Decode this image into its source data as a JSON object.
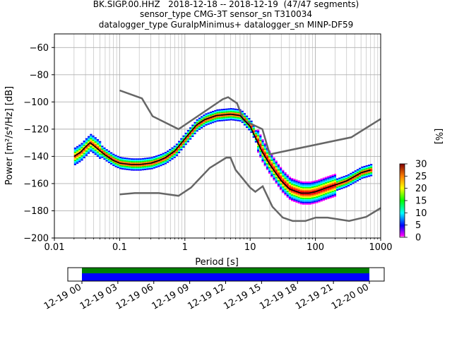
{
  "header": {
    "line1": "BK.SIGP.00.HHZ   2018-12-18 -- 2018-12-19  (47/47 segments)",
    "line2": "sensor_type CMG-3T sensor_sn T310034",
    "line3": "datalogger_type GuralpMinimus+ datalogger_sn MINP-DF59"
  },
  "chart_data": [
    {
      "type": "heatmap",
      "xlabel": "Period [s]",
      "ylabel": "Power [m²/s⁴/Hz] [dB]",
      "xscale": "log",
      "xlim": [
        0.01,
        1000
      ],
      "ylim": [
        -200,
        -50
      ],
      "xticks": [
        0.01,
        0.1,
        1,
        10,
        100,
        1000
      ],
      "xtick_labels": [
        "0.01",
        "0.1",
        "1",
        "10",
        "100",
        "1000"
      ],
      "yticks": [
        -200,
        -180,
        -160,
        -140,
        -120,
        -100,
        -80,
        -60
      ],
      "ytick_labels": [
        "−200",
        "−180",
        "−160",
        "−140",
        "−120",
        "−100",
        "−80",
        "−60"
      ],
      "grid": true,
      "noise_models": [
        {
          "name": "NHNM",
          "x": [
            0.1,
            0.22,
            0.32,
            0.8,
            3.8,
            4.6,
            6.3,
            7.9,
            15.4,
            20,
            354.8,
            1000
          ],
          "y": [
            -91.5,
            -97.4,
            -110.5,
            -120,
            -98,
            -96.5,
            -101,
            -113.5,
            -120,
            -138.5,
            -126,
            -112.5
          ]
        },
        {
          "name": "NLNM",
          "x": [
            0.1,
            0.17,
            0.4,
            0.8,
            1.24,
            2.4,
            4.3,
            5,
            6,
            10,
            12,
            15.6,
            21.9,
            31.6,
            45,
            70,
            101,
            154,
            328,
            600,
            1000
          ],
          "y": [
            -168,
            -167,
            -167,
            -169,
            -163,
            -148.5,
            -141,
            -141,
            -150,
            -163,
            -166,
            -162,
            -177,
            -185,
            -187.5,
            -187.5,
            -185,
            -185,
            -187.5,
            -184.5,
            -178
          ]
        }
      ],
      "mode_line": {
        "x": [
          0.02,
          0.025,
          0.03,
          0.035,
          0.04,
          0.05,
          0.06,
          0.08,
          0.1,
          0.15,
          0.2,
          0.3,
          0.4,
          0.5,
          0.7,
          1,
          1.5,
          2,
          3,
          5,
          7,
          10,
          15,
          20,
          30,
          40,
          60,
          80,
          100,
          150,
          200,
          300,
          500,
          700
        ],
        "y": [
          -140,
          -137,
          -133,
          -130,
          -132,
          -136,
          -139,
          -143,
          -145,
          -146,
          -146,
          -145,
          -143,
          -141,
          -136,
          -127,
          -117,
          -113,
          -110,
          -109,
          -110,
          -118,
          -136,
          -146,
          -158,
          -164,
          -167,
          -167,
          -166,
          -163,
          -161,
          -158,
          -152,
          -150
        ]
      },
      "colorbar": {
        "label": "[%]",
        "min": 0,
        "max": 30,
        "ticks": [
          0,
          5,
          10,
          15,
          20,
          25,
          30
        ]
      }
    },
    {
      "type": "timeline",
      "tick_labels": [
        "12-19 00",
        "12-19 03",
        "12-19 06",
        "12-19 09",
        "12-19 12",
        "12-19 15",
        "12-19 18",
        "12-19 21",
        "12-20 00"
      ],
      "colors": {
        "data": "#0000ff",
        "used": "#008000"
      }
    }
  ]
}
